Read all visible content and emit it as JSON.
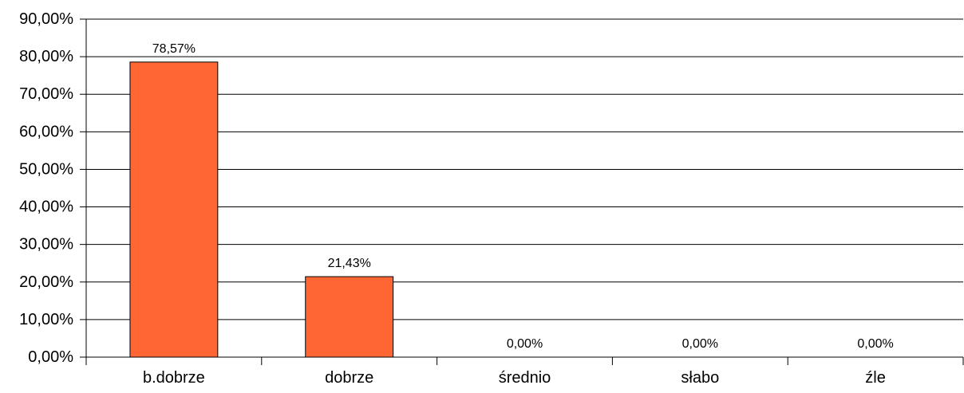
{
  "chart_data": {
    "type": "bar",
    "categories": [
      "b.dobrze",
      "dobrze",
      "średnio",
      "słabo",
      "źle"
    ],
    "values": [
      78.57,
      21.43,
      0.0,
      0.0,
      0.0
    ],
    "value_labels": [
      "78,57%",
      "21,43%",
      "0,00%",
      "0,00%",
      "0,00%"
    ],
    "y_ticks": [
      "0,00%",
      "10,00%",
      "20,00%",
      "30,00%",
      "40,00%",
      "50,00%",
      "60,00%",
      "70,00%",
      "80,00%",
      "90,00%"
    ],
    "ylim": [
      0,
      90
    ],
    "grid": true,
    "title": "",
    "xlabel": "",
    "ylabel": ""
  },
  "colors": {
    "bar_fill": "#ff6633",
    "bar_stroke": "#000000",
    "grid": "#000000",
    "axis": "#000000"
  }
}
